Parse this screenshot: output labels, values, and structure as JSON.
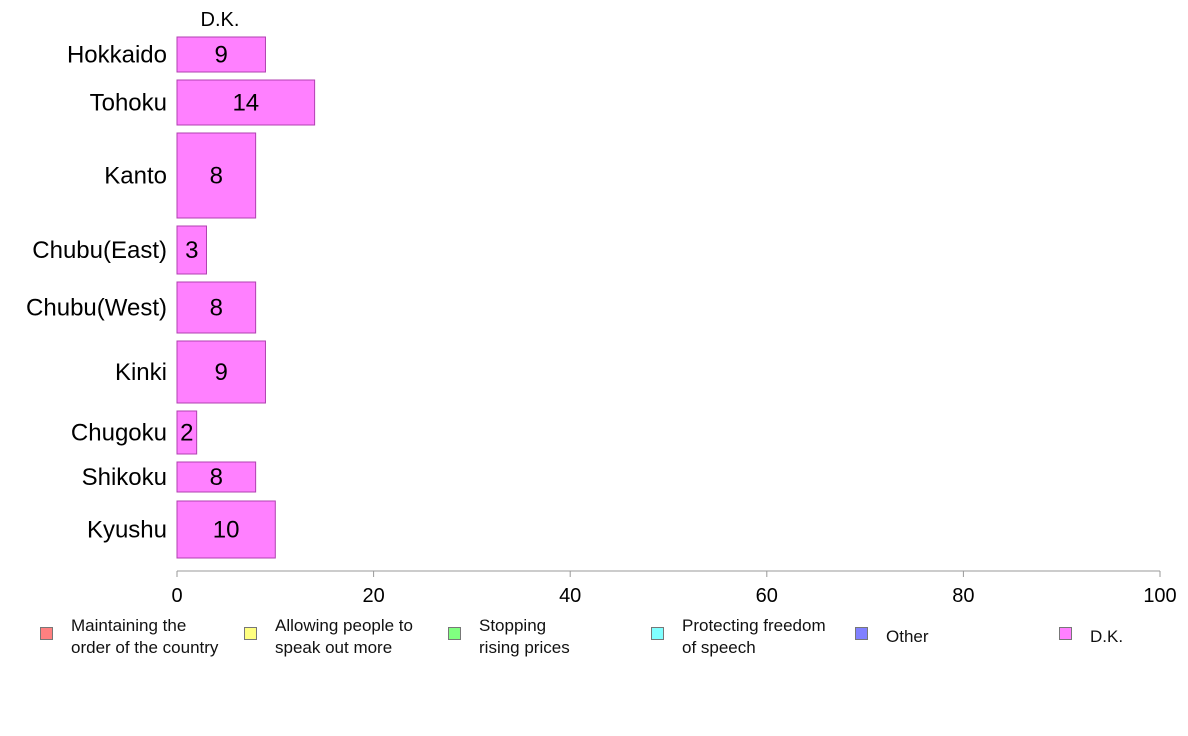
{
  "chart_data": {
    "type": "bar",
    "orientation": "horizontal",
    "series_header": "D.K.",
    "categories": [
      "Hokkaido",
      "Tohoku",
      "Kanto",
      "Chubu(East)",
      "Chubu(West)",
      "Kinki",
      "Chugoku",
      "Shikoku",
      "Kyushu"
    ],
    "series": [
      {
        "name": "D.K.",
        "values": [
          9,
          14,
          8,
          3,
          8,
          9,
          2,
          8,
          10
        ],
        "color": "#ff80ff"
      }
    ],
    "xlim": [
      0,
      100
    ],
    "xticks": [
      "0",
      "20",
      "40",
      "60",
      "80",
      "100"
    ],
    "grid": false,
    "legend_position": "bottom"
  },
  "legend": [
    {
      "label": "Maintaining the\norder of the country",
      "color": "#ff8080"
    },
    {
      "label": "Allowing people to\nspeak out more",
      "color": "#ffff80"
    },
    {
      "label": "Stopping\nrising prices",
      "color": "#80ff80"
    },
    {
      "label": "Protecting freedom\nof speech",
      "color": "#80ffff"
    },
    {
      "label": "Other",
      "color": "#8080ff"
    },
    {
      "label": "D.K.",
      "color": "#ff80ff"
    }
  ]
}
